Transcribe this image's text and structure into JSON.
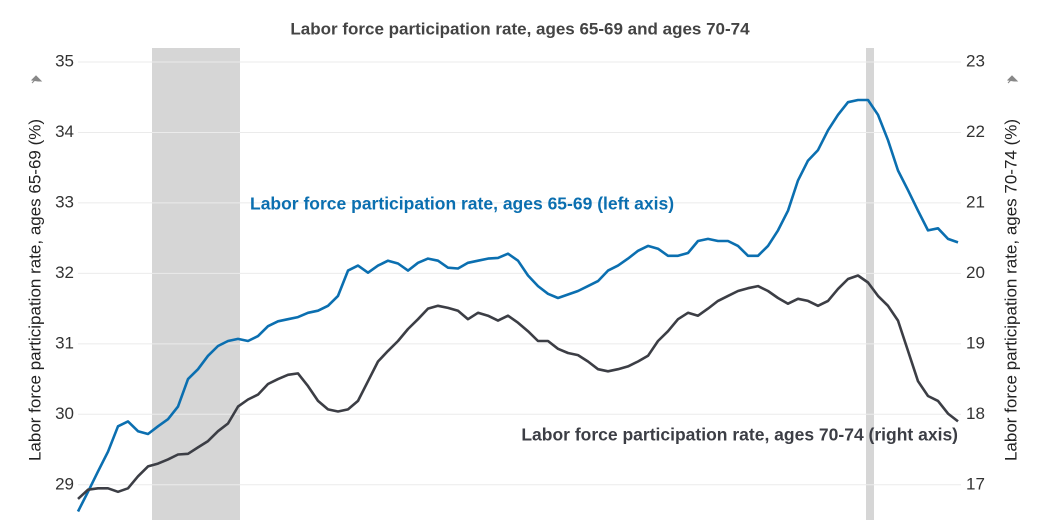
{
  "chart_data": {
    "type": "line",
    "title": "Labor force participation rate, ages 65-69 and ages 70-74",
    "ylabel": "Labor force participation rate, ages 65-69 (%)",
    "y2label": "Labor force participation rate, ages 70-74 (%)",
    "annotations": [
      "Labor force participation rate, ages 65-69 (left axis)",
      "Labor force participation rate, ages 70-74 (right axis)"
    ],
    "xlim": [
      0,
      88
    ],
    "ylim": [
      28.5,
      35
    ],
    "yticks": [
      29,
      30,
      31,
      32,
      33,
      34,
      35
    ],
    "y2lim": [
      16.5,
      23
    ],
    "y2ticks": [
      17,
      18,
      19,
      20,
      21,
      22,
      23
    ],
    "grid": true,
    "shaded_periods": [
      {
        "start": 7.4,
        "end": 16.2
      },
      {
        "start": 78.8,
        "end": 79.6
      }
    ],
    "series": [
      {
        "name": "Labor force participation rate, ages 65-69",
        "color": "#0b6fb0",
        "values": [
          28.62,
          28.9,
          29.19,
          29.47,
          29.83,
          29.9,
          29.76,
          29.72,
          29.83,
          29.93,
          30.11,
          30.5,
          30.64,
          30.83,
          30.97,
          31.04,
          31.07,
          31.04,
          31.11,
          31.25,
          31.32,
          31.35,
          31.38,
          31.44,
          31.47,
          31.54,
          31.68,
          32.04,
          32.11,
          32.01,
          32.11,
          32.18,
          32.14,
          32.04,
          32.15,
          32.21,
          32.18,
          32.08,
          32.07,
          32.15,
          32.18,
          32.21,
          32.22,
          32.28,
          32.18,
          31.97,
          31.82,
          31.71,
          31.65,
          31.7,
          31.75,
          31.82,
          31.89,
          32.04,
          32.11,
          32.21,
          32.32,
          32.39,
          32.35,
          32.25,
          32.25,
          32.29,
          32.46,
          32.49,
          32.46,
          32.46,
          32.39,
          32.25,
          32.25,
          32.39,
          32.61,
          32.89,
          33.32,
          33.6,
          33.75,
          34.03,
          34.25,
          34.43,
          34.46,
          34.46,
          34.25,
          33.89,
          33.46,
          33.18,
          32.89,
          32.61,
          32.64,
          32.49,
          32.44
        ]
      },
      {
        "name": "Labor force participation rate, ages 70-74",
        "color": "#3c3e45",
        "axis": "y2",
        "values": [
          16.8,
          16.93,
          16.95,
          16.95,
          16.9,
          16.95,
          17.12,
          17.26,
          17.3,
          17.36,
          17.43,
          17.44,
          17.53,
          17.62,
          17.76,
          17.87,
          18.11,
          18.21,
          18.28,
          18.43,
          18.5,
          18.56,
          18.58,
          18.4,
          18.19,
          18.07,
          18.04,
          18.07,
          18.19,
          18.47,
          18.75,
          18.9,
          19.04,
          19.21,
          19.35,
          19.5,
          19.54,
          19.51,
          19.47,
          19.35,
          19.44,
          19.4,
          19.33,
          19.4,
          19.3,
          19.18,
          19.04,
          19.04,
          18.93,
          18.87,
          18.84,
          18.75,
          18.64,
          18.61,
          18.64,
          18.68,
          18.75,
          18.83,
          19.04,
          19.18,
          19.35,
          19.44,
          19.4,
          19.5,
          19.61,
          19.68,
          19.75,
          19.79,
          19.82,
          19.75,
          19.65,
          19.57,
          19.64,
          19.61,
          19.54,
          19.61,
          19.78,
          19.92,
          19.97,
          19.87,
          19.68,
          19.54,
          19.33,
          18.9,
          18.47,
          18.26,
          18.19,
          18.01,
          17.9
        ]
      }
    ]
  }
}
